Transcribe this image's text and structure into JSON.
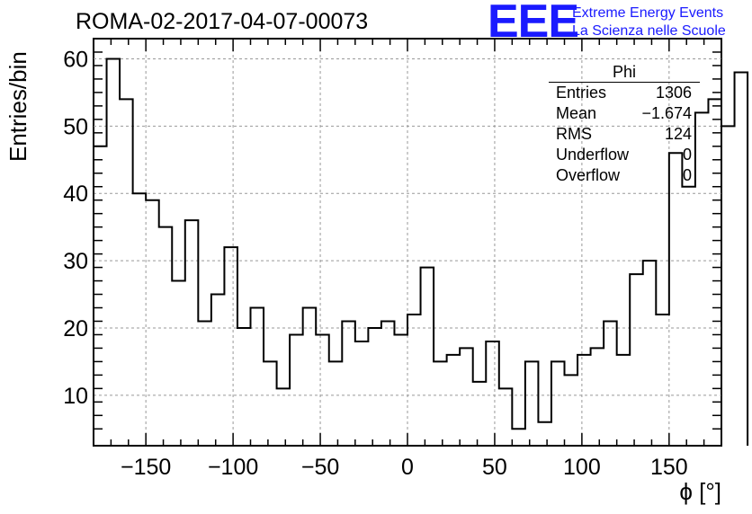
{
  "header": {
    "run_title": "ROMA-02-2017-04-07-00073",
    "logo_text": "EEE",
    "logo_line1": "Extreme Energy Events",
    "logo_line2": "La Scienza nelle Scuole"
  },
  "stats_box": {
    "title": "Phi",
    "rows": [
      {
        "label": "Entries",
        "value": "1306"
      },
      {
        "label": "Mean",
        "value": "−1.674"
      },
      {
        "label": "RMS",
        "value": "124"
      },
      {
        "label": "Underflow",
        "value": "0"
      },
      {
        "label": "Overflow",
        "value": "0"
      }
    ]
  },
  "chart_data": {
    "type": "histogram",
    "title": "ROMA-02-2017-04-07-00073",
    "xlabel": "ϕ [°]",
    "ylabel": "Entries/bin",
    "xlim": [
      -180,
      180
    ],
    "ylim": [
      2.5,
      63
    ],
    "bin_width": 7.5,
    "bin_edges_start": -180,
    "values": [
      47,
      60,
      54,
      40,
      39,
      35,
      27,
      36,
      21,
      25,
      32,
      20,
      23,
      15,
      11,
      19,
      23,
      19,
      15,
      21,
      18,
      20,
      21,
      19,
      22,
      29,
      15,
      16,
      17,
      12,
      18,
      11,
      5,
      15,
      6,
      15,
      13,
      16,
      17,
      21,
      16,
      28,
      30,
      22,
      46,
      41,
      52,
      54,
      50,
      58
    ],
    "xticks": [
      -150,
      -100,
      -50,
      0,
      50,
      100,
      150
    ],
    "xtick_labels": [
      "−150",
      "−100",
      "−50",
      "0",
      "50",
      "100",
      "150"
    ],
    "yticks": [
      10,
      20,
      30,
      40,
      50,
      60
    ],
    "ytick_labels": [
      "10",
      "20",
      "30",
      "40",
      "50",
      "60"
    ],
    "grid": true,
    "line_color": "#000000"
  }
}
